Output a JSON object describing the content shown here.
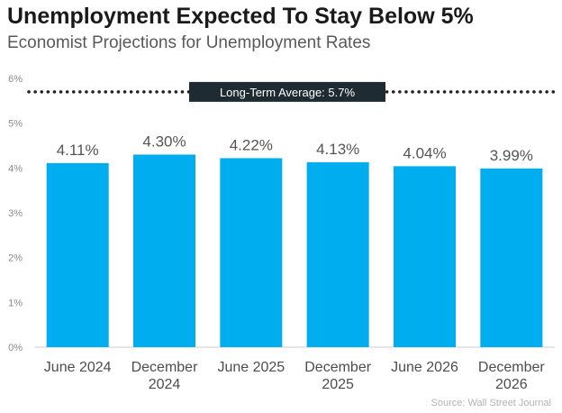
{
  "title": "Unemployment Expected To Stay Below 5%",
  "subtitle": "Economist Projections for Unemployment Rates",
  "source": "Source: Wall Street Journal",
  "colors": {
    "bar": "#00aeef",
    "reference": "#222222",
    "label_box": "#1f2b33"
  },
  "chart_data": {
    "type": "bar",
    "title": "Unemployment Expected To Stay Below 5%",
    "subtitle": "Economist Projections for Unemployment Rates",
    "categories": [
      [
        "June  2024"
      ],
      [
        "December",
        "2024"
      ],
      [
        "June 2025"
      ],
      [
        "December",
        "2025"
      ],
      [
        "June 2026"
      ],
      [
        "December",
        "2026"
      ]
    ],
    "values": [
      4.11,
      4.3,
      4.22,
      4.13,
      4.04,
      3.99
    ],
    "value_labels": [
      "4.11%",
      "4.30%",
      "4.22%",
      "4.13%",
      "4.04%",
      "3.99%"
    ],
    "ylim": [
      0,
      6
    ],
    "yticks": [
      0,
      1,
      2,
      3,
      4,
      5,
      6
    ],
    "ytick_labels": [
      "0%",
      "1%",
      "2%",
      "3%",
      "4%",
      "5%",
      "6%"
    ],
    "reference_line": {
      "value": 5.7,
      "label": "Long-Term Average: 5.7%",
      "style": "dotted"
    },
    "grid": false,
    "xlabel": "",
    "ylabel": ""
  }
}
